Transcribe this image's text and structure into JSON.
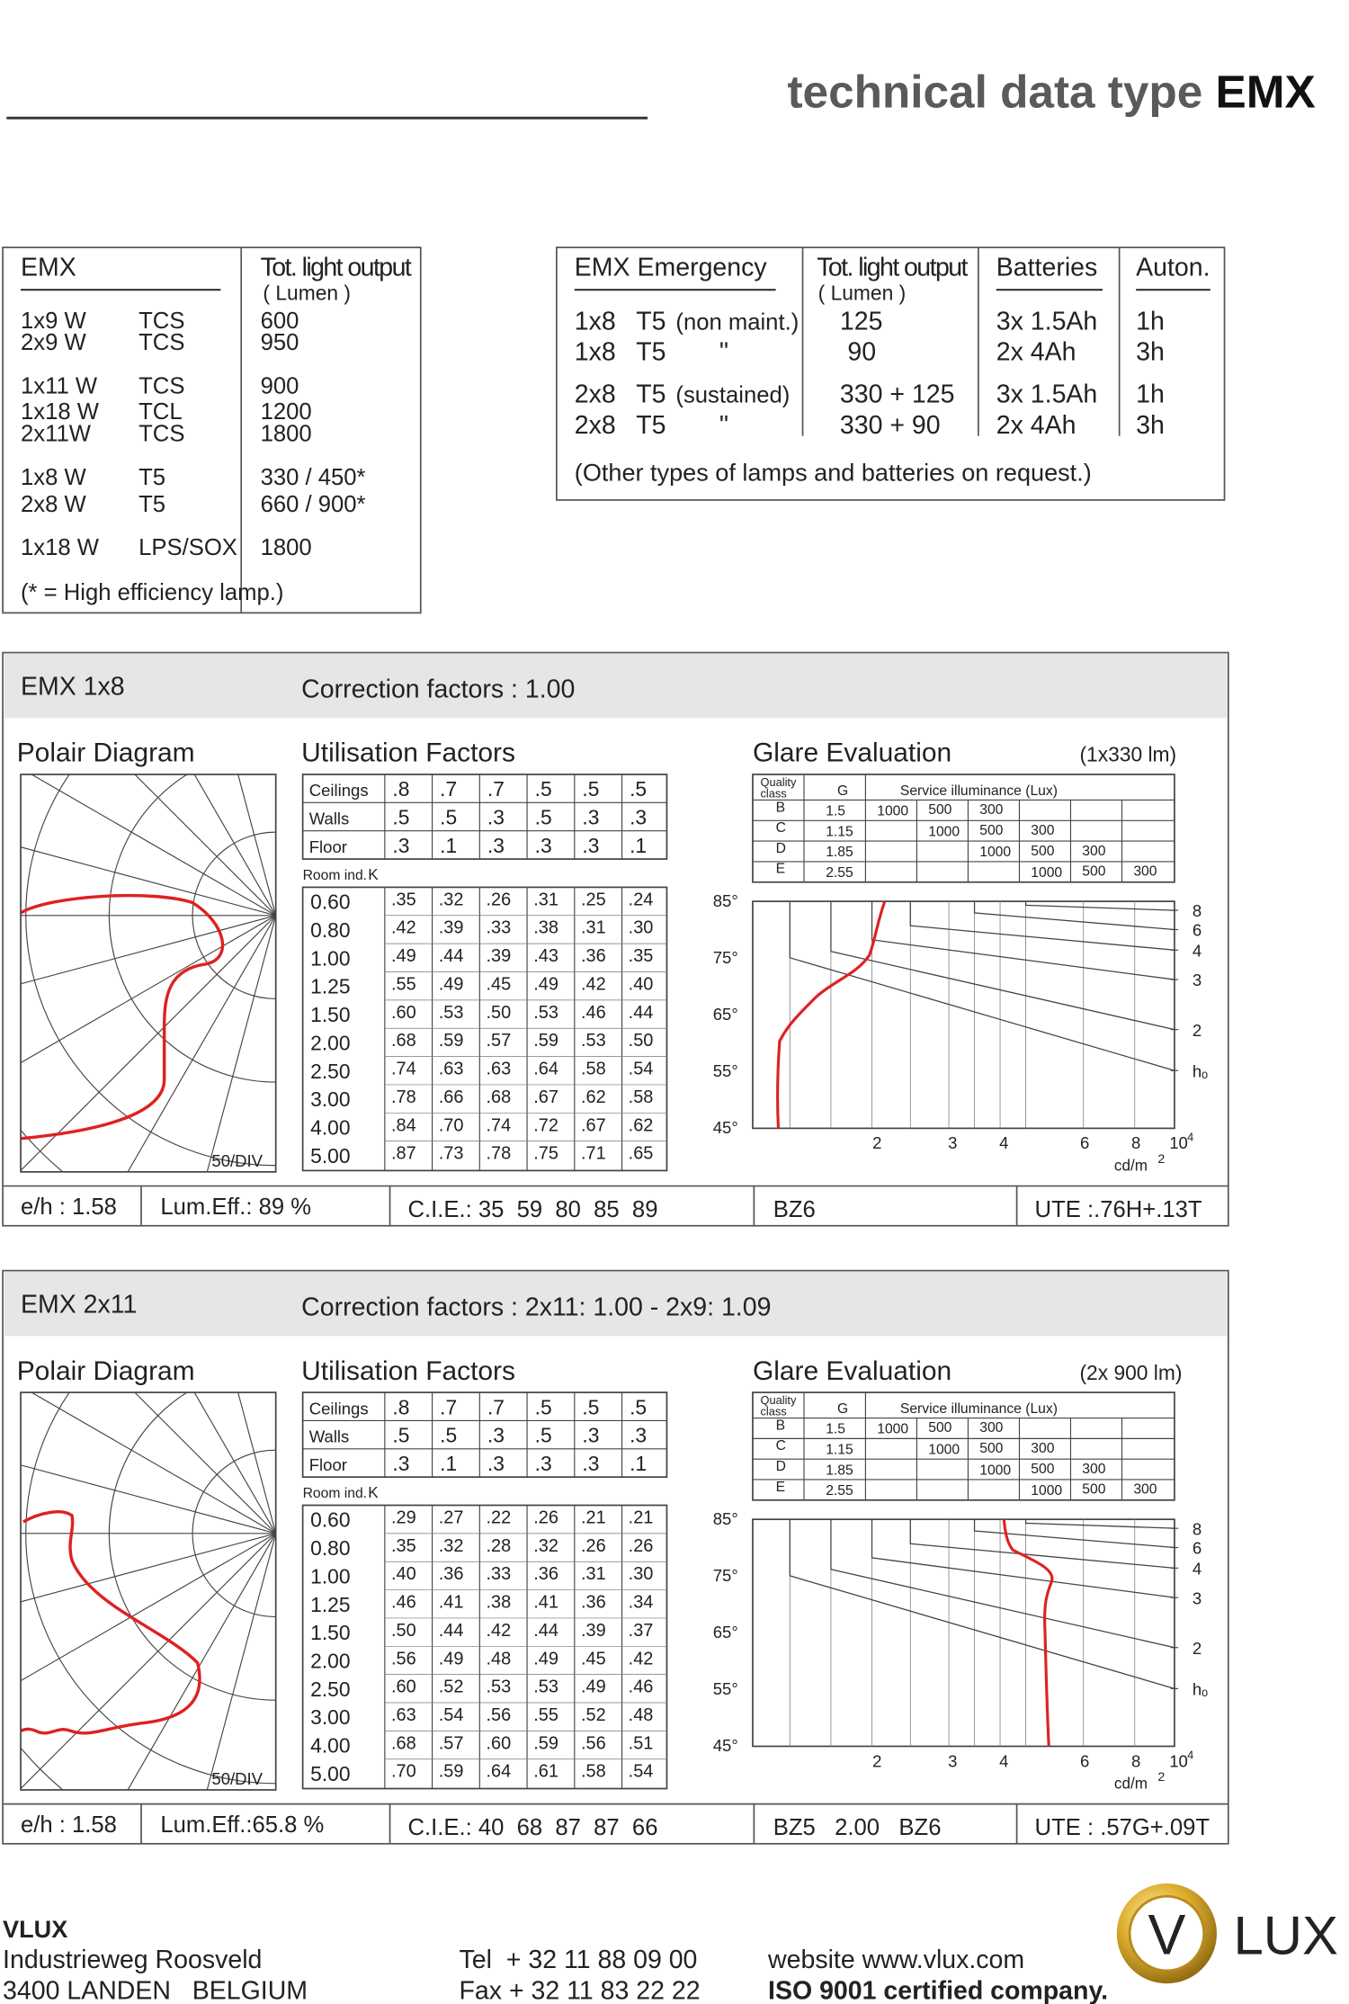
{
  "header": {
    "title": "technical data type",
    "title_strong": "EMX"
  },
  "lamps": {
    "col_name": "EMX",
    "col_output": "Tot. light output",
    "col_unit": "( Lumen )",
    "rows": [
      {
        "watt": "1x9 W",
        "type": "TCS",
        "lumen": "600"
      },
      {
        "watt": "2x9 W",
        "type": "TCS",
        "lumen": "950"
      },
      {
        "watt": "1x11 W",
        "type": "TCS",
        "lumen": "900"
      },
      {
        "watt": "1x18 W",
        "type": "TCL",
        "lumen": "1200"
      },
      {
        "watt": "2x11W",
        "type": "TCS",
        "lumen": "1800"
      },
      {
        "watt": "1x8 W",
        "type": "T5",
        "lumen": "330 / 450*"
      },
      {
        "watt": "2x8 W",
        "type": "T5",
        "lumen": "660 / 900*"
      },
      {
        "watt": "1x18 W",
        "type": "LPS/SOX",
        "lumen": "1800"
      }
    ],
    "note": "(* = High efficiency lamp.)"
  },
  "emergency": {
    "col_name": "EMX Emergency",
    "col_output": "Tot. light output",
    "col_unit": "( Lumen )",
    "col_batteries": "Batteries",
    "col_autonomy": "Auton.",
    "rows": [
      {
        "lamp": "1x8",
        "tube": "T5",
        "mode": "(non maint.)",
        "output": "125",
        "batteries": "3x 1.5Ah",
        "autonomy": "1h"
      },
      {
        "lamp": "1x8",
        "tube": "T5",
        "mode": "\"",
        "output": "90",
        "batteries": "2x 4Ah",
        "autonomy": "3h"
      },
      {
        "lamp": "2x8",
        "tube": "T5",
        "mode": "(sustained)",
        "output": "330 + 125",
        "batteries": "3x 1.5Ah",
        "autonomy": "1h"
      },
      {
        "lamp": "2x8",
        "tube": "T5",
        "mode": "\"",
        "output": "330 + 90",
        "batteries": "2x 4Ah",
        "autonomy": "3h"
      }
    ],
    "note": "(Other types of lamps and batteries on request.)"
  },
  "sections": [
    {
      "name": "EMX 1x8",
      "correction": "Correction factors : 1.00",
      "polar_title": "Polair Diagram",
      "polar_scale": "50/DIV",
      "util_title": "Utilisation Factors",
      "util": {
        "reflectances": [
          {
            "label": "Ceilings",
            "values": [
              ".8",
              ".7",
              ".7",
              ".5",
              ".5",
              ".5"
            ]
          },
          {
            "label": "Walls",
            "values": [
              ".5",
              ".5",
              ".3",
              ".5",
              ".3",
              ".3"
            ]
          },
          {
            "label": "Floor",
            "values": [
              ".3",
              ".1",
              ".3",
              ".3",
              ".3",
              ".1"
            ]
          }
        ],
        "room_label": "Room ind.",
        "k_label": "K",
        "rows": [
          {
            "k": "0.60",
            "values": [
              ".35",
              ".32",
              ".26",
              ".31",
              ".25",
              ".24"
            ]
          },
          {
            "k": "0.80",
            "values": [
              ".42",
              ".39",
              ".33",
              ".38",
              ".31",
              ".30"
            ]
          },
          {
            "k": "1.00",
            "values": [
              ".49",
              ".44",
              ".39",
              ".43",
              ".36",
              ".35"
            ]
          },
          {
            "k": "1.25",
            "values": [
              ".55",
              ".49",
              ".45",
              ".49",
              ".42",
              ".40"
            ]
          },
          {
            "k": "1.50",
            "values": [
              ".60",
              ".53",
              ".50",
              ".53",
              ".46",
              ".44"
            ]
          },
          {
            "k": "2.00",
            "values": [
              ".68",
              ".59",
              ".57",
              ".59",
              ".53",
              ".50"
            ]
          },
          {
            "k": "2.50",
            "values": [
              ".74",
              ".63",
              ".63",
              ".64",
              ".58",
              ".54"
            ]
          },
          {
            "k": "3.00",
            "values": [
              ".78",
              ".66",
              ".68",
              ".67",
              ".62",
              ".58"
            ]
          },
          {
            "k": "4.00",
            "values": [
              ".84",
              ".70",
              ".74",
              ".72",
              ".67",
              ".62"
            ]
          },
          {
            "k": "5.00",
            "values": [
              ".87",
              ".73",
              ".78",
              ".75",
              ".71",
              ".65"
            ]
          }
        ]
      },
      "glare_title": "Glare Evaluation",
      "glare_lamp": "(1x330 lm)",
      "glare_table": {
        "quality_label": [
          "Quality",
          "class"
        ],
        "g_label": "G",
        "service_label": "Service illuminance (Lux)",
        "rows": [
          {
            "class": "B",
            "g": "1.5",
            "values": [
              "1000",
              "500",
              "300"
            ]
          },
          {
            "class": "C",
            "g": "1.15",
            "values": [
              "1000",
              "500",
              "300"
            ]
          },
          {
            "class": "D",
            "g": "1.85",
            "values": [
              "1000",
              "500",
              "300"
            ]
          },
          {
            "class": "E",
            "g": "2.55",
            "values": [
              "1000",
              "500",
              "300"
            ]
          }
        ]
      },
      "glare_chart": {
        "angles": [
          "85°",
          "75°",
          "65°",
          "55°",
          "45°"
        ],
        "luminances": [
          "2",
          "3",
          "4",
          "6",
          "8",
          "10"
        ],
        "exponent": "4",
        "unit": "cd/m",
        "unit_power": "2",
        "ratios": [
          "8",
          "6",
          "4",
          "3",
          "2",
          "hₒ"
        ]
      },
      "footer": {
        "eh": "e/h : 1.58",
        "efficiency": "Lum.Eff.: 89 %",
        "cie": "C.I.E.: 35  59  80  85  89",
        "bz": "BZ6",
        "ute": "UTE :.76H+.13T"
      }
    },
    {
      "name": "EMX 2x11",
      "correction": "Correction factors : 2x11: 1.00 - 2x9: 1.09",
      "polar_title": "Polair Diagram",
      "polar_scale": "50/DIV",
      "util_title": "Utilisation Factors",
      "util": {
        "reflectances": [
          {
            "label": "Ceilings",
            "values": [
              ".8",
              ".7",
              ".7",
              ".5",
              ".5",
              ".5"
            ]
          },
          {
            "label": "Walls",
            "values": [
              ".5",
              ".5",
              ".3",
              ".5",
              ".3",
              ".3"
            ]
          },
          {
            "label": "Floor",
            "values": [
              ".3",
              ".1",
              ".3",
              ".3",
              ".3",
              ".1"
            ]
          }
        ],
        "room_label": "Room ind.",
        "k_label": "K",
        "rows": [
          {
            "k": "0.60",
            "values": [
              ".29",
              ".27",
              ".22",
              ".26",
              ".21",
              ".21"
            ]
          },
          {
            "k": "0.80",
            "values": [
              ".35",
              ".32",
              ".28",
              ".32",
              ".26",
              ".26"
            ]
          },
          {
            "k": "1.00",
            "values": [
              ".40",
              ".36",
              ".33",
              ".36",
              ".31",
              ".30"
            ]
          },
          {
            "k": "1.25",
            "values": [
              ".46",
              ".41",
              ".38",
              ".41",
              ".36",
              ".34"
            ]
          },
          {
            "k": "1.50",
            "values": [
              ".50",
              ".44",
              ".42",
              ".44",
              ".39",
              ".37"
            ]
          },
          {
            "k": "2.00",
            "values": [
              ".56",
              ".49",
              ".48",
              ".49",
              ".45",
              ".42"
            ]
          },
          {
            "k": "2.50",
            "values": [
              ".60",
              ".52",
              ".53",
              ".53",
              ".49",
              ".46"
            ]
          },
          {
            "k": "3.00",
            "values": [
              ".63",
              ".54",
              ".56",
              ".55",
              ".52",
              ".48"
            ]
          },
          {
            "k": "4.00",
            "values": [
              ".68",
              ".57",
              ".60",
              ".59",
              ".56",
              ".51"
            ]
          },
          {
            "k": "5.00",
            "values": [
              ".70",
              ".59",
              ".64",
              ".61",
              ".58",
              ".54"
            ]
          }
        ]
      },
      "glare_title": "Glare Evaluation",
      "glare_lamp": "(2x 900 lm)",
      "glare_table": {
        "quality_label": [
          "Quality",
          "class"
        ],
        "g_label": "G",
        "service_label": "Service illuminance (Lux)",
        "rows": [
          {
            "class": "B",
            "g": "1.5",
            "values": [
              "1000",
              "500",
              "300"
            ]
          },
          {
            "class": "C",
            "g": "1.15",
            "values": [
              "1000",
              "500",
              "300"
            ]
          },
          {
            "class": "D",
            "g": "1.85",
            "values": [
              "1000",
              "500",
              "300"
            ]
          },
          {
            "class": "E",
            "g": "2.55",
            "values": [
              "1000",
              "500",
              "300"
            ]
          }
        ]
      },
      "glare_chart": {
        "angles": [
          "85°",
          "75°",
          "65°",
          "55°",
          "45°"
        ],
        "luminances": [
          "2",
          "3",
          "4",
          "6",
          "8",
          "10"
        ],
        "exponent": "4",
        "unit": "cd/m",
        "unit_power": "2",
        "ratios": [
          "8",
          "6",
          "4",
          "3",
          "2",
          "hₒ"
        ]
      },
      "footer": {
        "eh": "e/h : 1.58",
        "efficiency": "Lum.Eff.:65.8 %",
        "cie": "C.I.E.: 40  68  87  87  66",
        "bz": "BZ5   2.00   BZ6",
        "ute": "UTE : .57G+.09T"
      }
    }
  ],
  "company": {
    "name": "VLUX",
    "street": "Industrieweg Roosveld",
    "city": "3400 LANDEN   BELGIUM",
    "tel": "Tel  + 32 11 88 09 00",
    "fax": "Fax + 32 11 83 22 22",
    "website": "website www.vlux.com",
    "iso": "ISO 9001 certified company.",
    "logo_letter": "V",
    "logo_text": "LUX"
  }
}
